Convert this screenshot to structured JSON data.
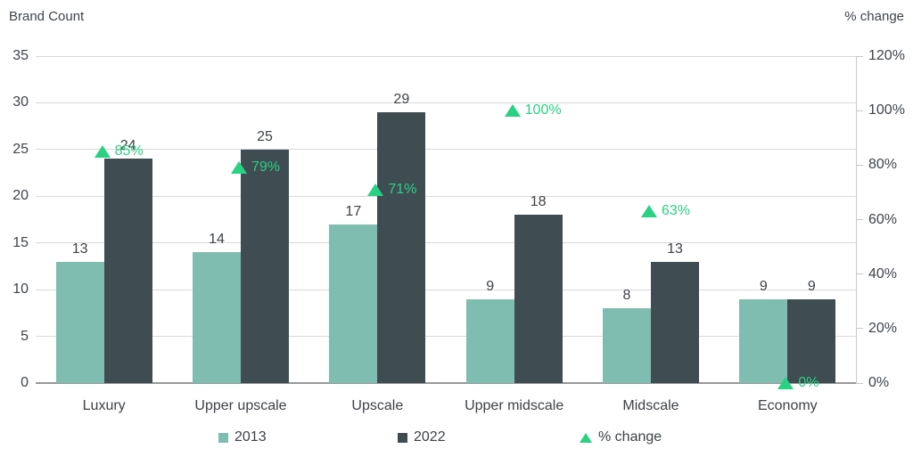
{
  "chart": {
    "left_axis_title": "Brand Count",
    "right_axis_title": "% change",
    "legend": [
      {
        "label": "2013",
        "marker": "square",
        "color": "#7fbdb0"
      },
      {
        "label": "2022",
        "marker": "square",
        "color": "#3f4d53"
      },
      {
        "label": "% change",
        "marker": "triangle-up",
        "color": "#28d282"
      }
    ]
  },
  "chart_data": {
    "type": "bar",
    "categories": [
      "Luxury",
      "Upper upscale",
      "Upscale",
      "Upper midscale",
      "Midscale",
      "Economy"
    ],
    "series": [
      {
        "name": "2013",
        "type": "bar",
        "axis": "left",
        "color": "#7fbdb0",
        "values": [
          13,
          14,
          17,
          9,
          8,
          9
        ]
      },
      {
        "name": "2022",
        "type": "bar",
        "axis": "left",
        "color": "#3f4d53",
        "values": [
          24,
          25,
          29,
          18,
          13,
          9
        ]
      },
      {
        "name": "% change",
        "type": "triangle-marker",
        "axis": "right",
        "color": "#28d282",
        "values": [
          85,
          79,
          71,
          100,
          63,
          0
        ],
        "labels": [
          "85%",
          "79%",
          "71%",
          "100%",
          "63%",
          "0%"
        ]
      }
    ],
    "left_axis": {
      "title": "Brand Count",
      "range": [
        0,
        35
      ],
      "tick_step": 5,
      "ticks": [
        0,
        5,
        10,
        15,
        20,
        25,
        30,
        35
      ]
    },
    "right_axis": {
      "title": "% change",
      "range": [
        0,
        120
      ],
      "tick_step": 20,
      "ticks": [
        "0%",
        "20%",
        "40%",
        "60%",
        "80%",
        "100%",
        "120%"
      ]
    },
    "grid": true,
    "legend_position": "bottom",
    "colors": {
      "gridline": "#d9d9d9",
      "baseline": "#96999b",
      "right_axis_line": "#c9c9c9",
      "text": "#3c4246"
    }
  }
}
